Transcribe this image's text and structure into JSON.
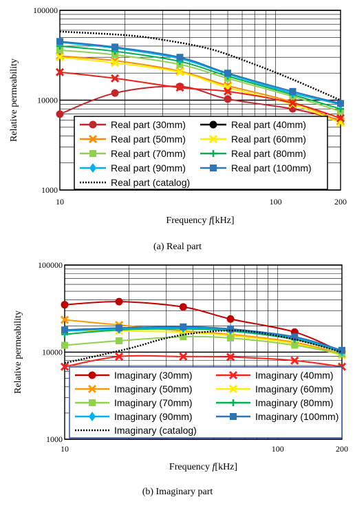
{
  "chart_data": [
    {
      "type": "line",
      "caption": "(a) Real part",
      "xlabel_prefix": "Frequency ",
      "xlabel_var": "f",
      "xlabel_unit": "[kHz]",
      "ylabel": "Relative permeability",
      "x_scale": "log",
      "y_scale": "log",
      "xlim": [
        10,
        200
      ],
      "ylim": [
        1000,
        100000
      ],
      "x_ticks": [
        {
          "v": 10,
          "label": "10"
        },
        {
          "v": 100,
          "label": "100"
        },
        {
          "v": 200,
          "label": "200"
        }
      ],
      "y_ticks": [
        {
          "v": 1000,
          "label": "1000"
        },
        {
          "v": 10000,
          "label": "10000"
        },
        {
          "v": 100000,
          "label": "100000"
        }
      ],
      "grid": true,
      "legend_placement": "bottom-center",
      "series": [
        {
          "name": "Real part (30mm)",
          "color": "#c0262b",
          "marker": "circle",
          "x": [
            10,
            18,
            36,
            60,
            120,
            200
          ],
          "y": [
            7000,
            12000,
            14200,
            10300,
            8000,
            6000
          ]
        },
        {
          "name": "Real part (40mm)",
          "color": "#000000",
          "marker": "circle",
          "x": [],
          "y": []
        },
        {
          "name": "Real part (50mm)",
          "color": "#ff8c00",
          "marker": "x",
          "x": [
            10,
            18,
            36,
            60,
            120,
            200
          ],
          "y": [
            31000,
            27500,
            21000,
            14500,
            9500,
            5800
          ]
        },
        {
          "name": "Real part (60mm)",
          "color": "#ffee00",
          "marker": "x",
          "x": [
            10,
            18,
            36,
            60,
            120,
            200
          ],
          "y": [
            30000,
            26000,
            20500,
            13800,
            9000,
            5600
          ]
        },
        {
          "name": "Real part (70mm)",
          "color": "#92d050",
          "marker": "square",
          "x": [
            10,
            18,
            36,
            60,
            120,
            200
          ],
          "y": [
            36000,
            32000,
            25000,
            17500,
            11000,
            7500
          ]
        },
        {
          "name": "Real part (80mm)",
          "color": "#00b050",
          "marker": "plus",
          "x": [
            10,
            18,
            36,
            60,
            120,
            200
          ],
          "y": [
            40000,
            35000,
            27000,
            18500,
            11500,
            8000
          ]
        },
        {
          "name": "Real part (90mm)",
          "color": "#00b0f0",
          "marker": "diamond",
          "x": [
            10,
            18,
            36,
            60,
            120,
            200
          ],
          "y": [
            44000,
            38000,
            29000,
            19500,
            12000,
            9000
          ]
        },
        {
          "name": "Real part (100mm)",
          "color": "#2e75b6",
          "marker": "square",
          "x": [
            10,
            18,
            36,
            60,
            120,
            200
          ],
          "y": [
            45000,
            39000,
            30000,
            20000,
            12500,
            9200
          ]
        },
        {
          "name": "Real part (catalog)",
          "color": "#000000",
          "marker": "none",
          "dotted": true,
          "x": [
            10,
            20,
            30,
            50,
            80,
            120,
            200
          ],
          "y": [
            58000,
            53000,
            47000,
            37000,
            25000,
            17000,
            10000
          ]
        }
      ],
      "extra_series": [
        {
          "color": "#e8231c",
          "marker": "x",
          "x": [
            10,
            18,
            36,
            60,
            120,
            200
          ],
          "y": [
            20500,
            17500,
            13800,
            12500,
            9300,
            6300
          ]
        }
      ]
    },
    {
      "type": "line",
      "caption": "(b) Imaginary part",
      "xlabel_prefix": "Frequency ",
      "xlabel_var": "f",
      "xlabel_unit": "[kHz]",
      "ylabel": "Relative permeability",
      "x_scale": "log",
      "y_scale": "log",
      "xlim": [
        10,
        200
      ],
      "ylim": [
        1000,
        100000
      ],
      "x_ticks": [
        {
          "v": 10,
          "label": "10"
        },
        {
          "v": 100,
          "label": "100"
        },
        {
          "v": 200,
          "label": "200"
        }
      ],
      "y_ticks": [
        {
          "v": 1000,
          "label": "1000"
        },
        {
          "v": 10000,
          "label": "10000"
        },
        {
          "v": 100000,
          "label": "100000"
        }
      ],
      "grid": true,
      "legend_placement": "bottom-center",
      "series": [
        {
          "name": "Imaginary (30mm)",
          "color": "#c00000",
          "marker": "circle",
          "x": [
            10,
            18,
            36,
            60,
            120,
            200
          ],
          "y": [
            35000,
            38000,
            33000,
            24000,
            17000,
            10000
          ]
        },
        {
          "name": "Imaginary (40mm)",
          "color": "#ff2020",
          "marker": "x",
          "x": [
            10,
            18,
            36,
            60,
            120,
            200
          ],
          "y": [
            6800,
            8900,
            8900,
            8800,
            8000,
            6800
          ]
        },
        {
          "name": "Imaginary (50mm)",
          "color": "#ff9900",
          "marker": "x",
          "x": [
            10,
            18,
            36,
            60,
            120,
            200
          ],
          "y": [
            23500,
            20500,
            17500,
            16000,
            13000,
            9500
          ]
        },
        {
          "name": "Imaginary (60mm)",
          "color": "#ffee00",
          "marker": "x",
          "x": [
            10,
            18,
            36,
            60,
            120,
            200
          ],
          "y": [
            17500,
            17500,
            17000,
            15500,
            12500,
            9200
          ]
        },
        {
          "name": "Imaginary (70mm)",
          "color": "#92d050",
          "marker": "square",
          "x": [
            10,
            18,
            36,
            60,
            120,
            200
          ],
          "y": [
            12000,
            13500,
            15000,
            14500,
            12000,
            9500
          ]
        },
        {
          "name": "Imaginary (80mm)",
          "color": "#00b050",
          "marker": "plus",
          "x": [
            10,
            18,
            36,
            60,
            120,
            200
          ],
          "y": [
            16000,
            18000,
            18500,
            17500,
            14000,
            10000
          ]
        },
        {
          "name": "Imaginary (90mm)",
          "color": "#00b0f0",
          "marker": "diamond",
          "x": [
            10,
            18,
            36,
            60,
            120,
            200
          ],
          "y": [
            17500,
            18500,
            19000,
            18000,
            14500,
            10200
          ]
        },
        {
          "name": "Imaginary (100mm)",
          "color": "#2e75b6",
          "marker": "square",
          "x": [
            10,
            18,
            36,
            60,
            120,
            200
          ],
          "y": [
            18000,
            19000,
            19500,
            18500,
            15000,
            10500
          ]
        },
        {
          "name": "Imaginary (catalog)",
          "color": "#000000",
          "marker": "none",
          "dotted": true,
          "x": [
            10,
            20,
            30,
            45,
            70,
            120,
            200
          ],
          "y": [
            7500,
            11000,
            14500,
            17000,
            17500,
            14000,
            10000
          ]
        }
      ]
    }
  ]
}
